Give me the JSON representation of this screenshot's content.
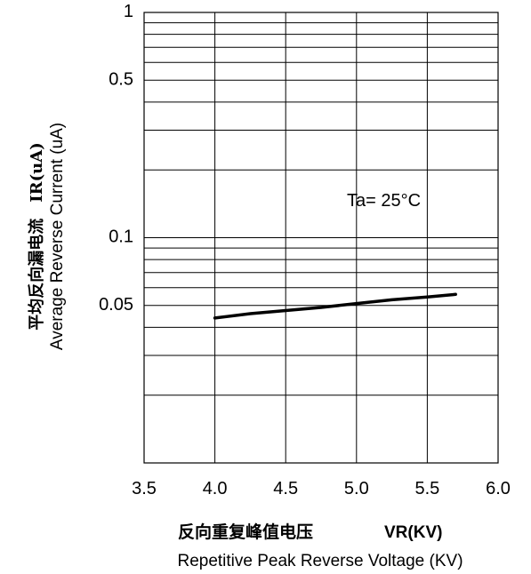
{
  "chart_data": {
    "type": "line",
    "xscale": "linear",
    "yscale": "log",
    "xlim": [
      3.5,
      6.0
    ],
    "ylim": [
      0.01,
      1
    ],
    "x_ticks": [
      {
        "value": 3.5,
        "label": "3.5"
      },
      {
        "value": 4.0,
        "label": "4.0"
      },
      {
        "value": 4.5,
        "label": "4.5"
      },
      {
        "value": 5.0,
        "label": "5.0"
      },
      {
        "value": 5.5,
        "label": "5.5"
      },
      {
        "value": 6.0,
        "label": "6.0"
      }
    ],
    "y_ticks": [
      {
        "value": 1,
        "label": "1"
      },
      {
        "value": 0.5,
        "label": "0.5"
      },
      {
        "value": 0.1,
        "label": "0.1"
      },
      {
        "value": 0.05,
        "label": "0.05"
      }
    ],
    "grid": true,
    "xlabel_cn": "反向重复峰值电压",
    "xlabel_symbol": "VR(KV)",
    "xlabel_en": "Repetitive Peak Reverse Voltage (KV)",
    "ylabel_cn": "平均反向漏电流　IR(uA)",
    "ylabel_en": "Average Reverse  Current  (uA)",
    "annotation": "Ta= 25°C",
    "series": [
      {
        "x": [
          4.0,
          4.25,
          4.5,
          4.75,
          5.0,
          5.25,
          5.5,
          5.7
        ],
        "y": [
          0.044,
          0.046,
          0.0475,
          0.049,
          0.051,
          0.053,
          0.0545,
          0.056
        ]
      }
    ]
  }
}
